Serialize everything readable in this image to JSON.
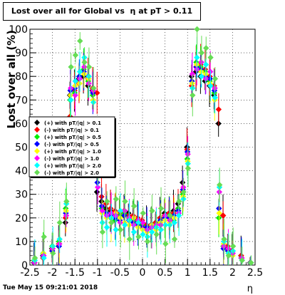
{
  "title": "Lost over all for Global vs  η at pT > 0.11",
  "footer_timestamp": "Tue May 15 09:21:01 2018",
  "chart_data": {
    "type": "scatter",
    "title": "Lost over all for Global vs  η at pT > 0.11",
    "xlabel": "η",
    "ylabel": "Lost over all (%)",
    "xlim": [
      -2.5,
      2.5
    ],
    "ylim": [
      0,
      100
    ],
    "x_ticks": [
      "-2.5",
      "-2",
      "-1.5",
      "-1",
      "-0.5",
      "0",
      "0.5",
      "1",
      "1.5",
      "2",
      "2.5"
    ],
    "y_ticks": [
      "0",
      "10",
      "20",
      "30",
      "40",
      "50",
      "60",
      "70",
      "80",
      "90",
      "100"
    ],
    "grid": true,
    "legend_position": "left-middle",
    "series": [
      {
        "name": "(+) with pT/|q| > 0.1",
        "color": "#000000",
        "marker": "diamond",
        "x": [
          -2.4,
          -2.2,
          -2.0,
          -1.85,
          -1.7,
          -1.6,
          -1.5,
          -1.4,
          -1.3,
          -1.2,
          -1.1,
          -1.0,
          -0.9,
          -0.8,
          -0.7,
          -0.6,
          -0.5,
          -0.4,
          -0.3,
          -0.2,
          -0.1,
          0.0,
          0.1,
          0.2,
          0.3,
          0.4,
          0.5,
          0.6,
          0.7,
          0.8,
          0.9,
          1.0,
          1.1,
          1.2,
          1.3,
          1.4,
          1.5,
          1.6,
          1.7,
          1.8,
          1.9,
          2.0,
          2.2,
          2.4
        ],
        "y": [
          1,
          4,
          7,
          8,
          18,
          72,
          74,
          79,
          80,
          76,
          74,
          31,
          27,
          24,
          23,
          22,
          22,
          21,
          22,
          20,
          19,
          18,
          17,
          17,
          18,
          20,
          22,
          22,
          23,
          26,
          35,
          50,
          80,
          82,
          80,
          78,
          76,
          72,
          60,
          21,
          7,
          6,
          4,
          1
        ]
      },
      {
        "name": "(-) with pT/|q| > 0.1",
        "color": "#ff0000",
        "marker": "diamond",
        "x": [
          -2.4,
          -2.2,
          -2.0,
          -1.85,
          -1.7,
          -1.6,
          -1.5,
          -1.4,
          -1.3,
          -1.2,
          -1.1,
          -1.0,
          -0.9,
          -0.8,
          -0.7,
          -0.6,
          -0.5,
          -0.4,
          -0.3,
          -0.2,
          -0.1,
          0.0,
          0.1,
          0.2,
          0.3,
          0.4,
          0.5,
          0.6,
          0.7,
          0.8,
          0.9,
          1.0,
          1.1,
          1.2,
          1.3,
          1.4,
          1.5,
          1.6,
          1.7,
          1.8,
          1.9,
          2.0,
          2.2,
          2.4
        ],
        "y": [
          1,
          3,
          6,
          9,
          20,
          63,
          74,
          77,
          82,
          79,
          75,
          73,
          29,
          26,
          24,
          23,
          22,
          23,
          21,
          21,
          20,
          19,
          17,
          16,
          18,
          20,
          21,
          22,
          22,
          24,
          31,
          49,
          76,
          84,
          85,
          83,
          80,
          76,
          66,
          21,
          8,
          6,
          4,
          1
        ]
      },
      {
        "name": "(+) with pT/|q| > 0.5",
        "color": "#00ee00",
        "marker": "diamond",
        "x": [
          -2.4,
          -2.2,
          -2.0,
          -1.85,
          -1.7,
          -1.6,
          -1.5,
          -1.4,
          -1.3,
          -1.2,
          -1.1,
          -1.0,
          -0.9,
          -0.8,
          -0.7,
          -0.6,
          -0.5,
          -0.4,
          -0.3,
          -0.2,
          -0.1,
          0.0,
          0.1,
          0.2,
          0.3,
          0.4,
          0.5,
          0.6,
          0.7,
          0.8,
          0.9,
          1.0,
          1.1,
          1.2,
          1.3,
          1.4,
          1.5,
          1.6,
          1.7,
          1.8,
          1.9,
          2.0,
          2.2,
          2.4
        ],
        "y": [
          2,
          5,
          8,
          10,
          24,
          70,
          73,
          80,
          83,
          78,
          72,
          40,
          24,
          22,
          20,
          19,
          21,
          22,
          20,
          19,
          18,
          17,
          15,
          16,
          17,
          18,
          20,
          21,
          19,
          24,
          30,
          45,
          78,
          86,
          84,
          82,
          78,
          73,
          20,
          8,
          6,
          5,
          3,
          1
        ]
      },
      {
        "name": "(-) with pT/|q| > 0.5",
        "color": "#0000ff",
        "marker": "diamond",
        "x": [
          -2.4,
          -2.2,
          -2.0,
          -1.85,
          -1.7,
          -1.6,
          -1.5,
          -1.4,
          -1.3,
          -1.2,
          -1.1,
          -1.0,
          -0.9,
          -0.8,
          -0.7,
          -0.6,
          -0.5,
          -0.4,
          -0.3,
          -0.2,
          -0.1,
          0.0,
          0.1,
          0.2,
          0.3,
          0.4,
          0.5,
          0.6,
          0.7,
          0.8,
          0.9,
          1.0,
          1.1,
          1.2,
          1.3,
          1.4,
          1.5,
          1.6,
          1.7,
          1.8,
          1.9,
          2.0,
          2.2,
          2.4
        ],
        "y": [
          1,
          4,
          6,
          8,
          22,
          74,
          75,
          80,
          82,
          80,
          73,
          35,
          25,
          22,
          21,
          20,
          19,
          21,
          19,
          18,
          17,
          16,
          16,
          17,
          16,
          19,
          20,
          20,
          21,
          23,
          32,
          48,
          78,
          84,
          83,
          80,
          79,
          74,
          24,
          7,
          6,
          4,
          3,
          1
        ]
      },
      {
        "name": "(+) with pT/|q| > 1.0",
        "color": "#ffff00",
        "marker": "diamond",
        "x": [
          -2.4,
          -2.2,
          -2.0,
          -1.85,
          -1.7,
          -1.6,
          -1.5,
          -1.4,
          -1.3,
          -1.2,
          -1.1,
          -1.0,
          -0.9,
          -0.8,
          -0.7,
          -0.6,
          -0.5,
          -0.4,
          -0.3,
          -0.2,
          -0.1,
          0.0,
          0.1,
          0.2,
          0.3,
          0.4,
          0.5,
          0.6,
          0.7,
          0.8,
          0.9,
          1.0,
          1.1,
          1.2,
          1.3,
          1.4,
          1.5,
          1.6,
          1.7,
          1.8,
          1.9,
          2.0,
          2.2,
          2.4
        ],
        "y": [
          2,
          5,
          7,
          9,
          23,
          72,
          76,
          77,
          81,
          79,
          70,
          38,
          22,
          20,
          18,
          22,
          20,
          18,
          17,
          20,
          16,
          15,
          14,
          17,
          15,
          18,
          19,
          18,
          20,
          22,
          29,
          44,
          77,
          85,
          82,
          81,
          77,
          70,
          22,
          9,
          5,
          4,
          3,
          1
        ]
      },
      {
        "name": "(-) with pT/|q| > 1.0",
        "color": "#ff00ff",
        "marker": "diamond",
        "x": [
          -2.4,
          -2.2,
          -2.0,
          -1.85,
          -1.7,
          -1.6,
          -1.5,
          -1.4,
          -1.3,
          -1.2,
          -1.1,
          -1.0,
          -0.9,
          -0.8,
          -0.7,
          -0.6,
          -0.5,
          -0.4,
          -0.3,
          -0.2,
          -0.1,
          0.0,
          0.1,
          0.2,
          0.3,
          0.4,
          0.5,
          0.6,
          0.7,
          0.8,
          0.9,
          1.0,
          1.1,
          1.2,
          1.3,
          1.4,
          1.5,
          1.6,
          1.7,
          1.8,
          1.9,
          2.0,
          2.2,
          2.4
        ],
        "y": [
          1,
          4,
          7,
          9,
          21,
          75,
          72,
          79,
          84,
          77,
          74,
          33,
          23,
          21,
          22,
          21,
          18,
          23,
          20,
          17,
          19,
          18,
          15,
          16,
          17,
          17,
          21,
          19,
          18,
          22,
          33,
          47,
          81,
          83,
          86,
          79,
          82,
          75,
          31,
          8,
          7,
          5,
          3,
          1
        ]
      },
      {
        "name": "(+) with pT/|q| > 2.0",
        "color": "#00ffff",
        "marker": "diamond",
        "x": [
          -2.4,
          -2.2,
          -2.0,
          -1.85,
          -1.7,
          -1.6,
          -1.5,
          -1.4,
          -1.3,
          -1.2,
          -1.1,
          -1.0,
          -0.9,
          -0.8,
          -0.7,
          -0.6,
          -0.5,
          -0.4,
          -0.3,
          -0.2,
          -0.1,
          0.0,
          0.1,
          0.2,
          0.3,
          0.4,
          0.5,
          0.6,
          0.7,
          0.8,
          0.9,
          1.0,
          1.1,
          1.2,
          1.3,
          1.4,
          1.5,
          1.6,
          1.7,
          1.8,
          1.9,
          2.0,
          2.2,
          2.4
        ],
        "y": [
          2,
          3,
          8,
          11,
          26,
          70,
          78,
          82,
          88,
          80,
          69,
          42,
          18,
          16,
          20,
          15,
          23,
          17,
          19,
          14,
          18,
          13,
          12,
          14,
          16,
          15,
          17,
          17,
          18,
          21,
          28,
          43,
          75,
          88,
          80,
          85,
          76,
          71,
          33,
          10,
          5,
          6,
          2,
          1
        ]
      },
      {
        "name": "(-) with pT/|q| > 2.0",
        "color": "#66dd55",
        "marker": "diamond",
        "x": [
          -2.4,
          -2.2,
          -2.0,
          -1.85,
          -1.7,
          -1.6,
          -1.5,
          -1.4,
          -1.3,
          -1.2,
          -1.1,
          -1.0,
          -0.9,
          -0.8,
          -0.7,
          -0.6,
          -0.5,
          -0.4,
          -0.3,
          -0.2,
          -0.1,
          0.0,
          0.1,
          0.2,
          0.3,
          0.4,
          0.5,
          0.6,
          0.7,
          0.8,
          0.9,
          1.0,
          1.1,
          1.2,
          1.3,
          1.4,
          1.5,
          1.6,
          1.7,
          1.8,
          1.9,
          2.0,
          2.2,
          2.4
        ],
        "y": [
          3,
          12,
          5,
          18,
          27,
          84,
          89,
          95,
          86,
          84,
          75,
          43,
          14,
          27,
          18,
          28,
          15,
          27,
          11,
          25,
          12,
          22,
          10,
          23,
          13,
          24,
          9,
          21,
          11,
          27,
          31,
          41,
          72,
          100,
          90,
          92,
          88,
          79,
          34,
          11,
          4,
          8,
          2,
          1
        ]
      }
    ]
  }
}
